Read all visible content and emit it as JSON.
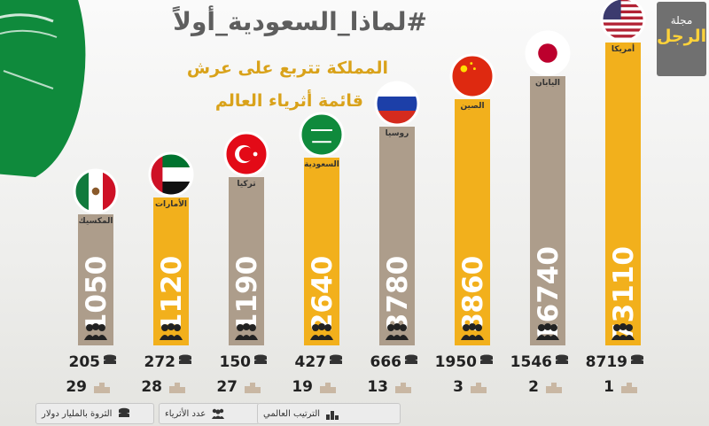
{
  "title": "#لماذا_السعودية_أولاً",
  "subtitle_line1": "المملكة تتربع على عرش",
  "subtitle_line2": "قائمة أثرياء العالم",
  "logo": {
    "line1": "مجلة",
    "line2": "الرجل"
  },
  "legend": {
    "wealth": "الثروة بالمليار دولار",
    "count": "عدد الأثرياء",
    "rank": "الترتيب العالمي"
  },
  "colors": {
    "accent": "#f2b01c",
    "neutral": "#ad9d8b",
    "brand": "#707070"
  },
  "chart_data": {
    "type": "bar",
    "categories": [
      "المكسيك",
      "الأمارات",
      "تركيا",
      "السعودية",
      "روسيا",
      "الصين",
      "اليابان",
      "أمريكا"
    ],
    "series": [
      {
        "name": "عدد الأثرياء",
        "values": [
          1050,
          1120,
          1190,
          2640,
          3780,
          8860,
          16740,
          73110
        ]
      },
      {
        "name": "الثروة بالمليار دولار",
        "values": [
          205,
          272,
          150,
          427,
          666,
          1950,
          1546,
          8719
        ]
      },
      {
        "name": "الترتيب العالمي",
        "values": [
          29,
          28,
          27,
          19,
          13,
          3,
          2,
          1
        ]
      }
    ],
    "flags": [
      "mexico-flag",
      "uae-flag",
      "turkey-flag",
      "saudi-flag",
      "russia-flag",
      "china-flag",
      "japan-flag",
      "usa-flag"
    ],
    "bar_colors": [
      "#ad9d8b",
      "#f2b01c",
      "#ad9d8b",
      "#f2b01c",
      "#ad9d8b",
      "#f2b01c",
      "#ad9d8b",
      "#f2b01c"
    ]
  }
}
